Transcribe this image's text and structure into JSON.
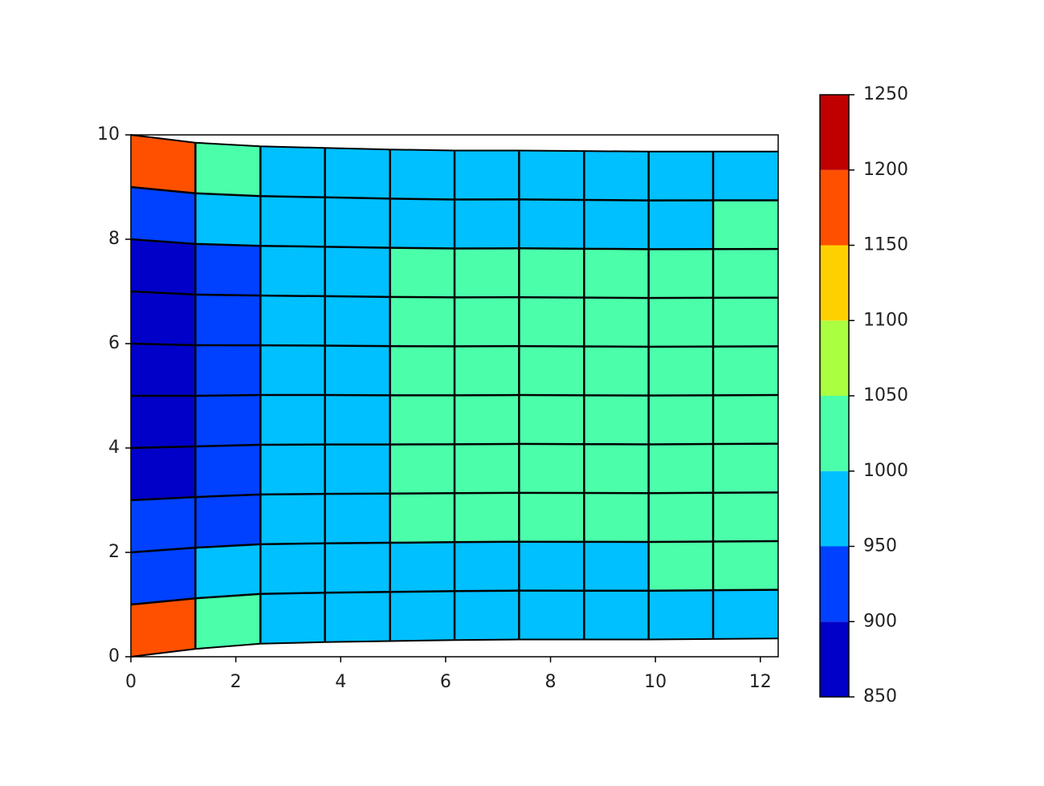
{
  "chart_data": {
    "type": "contour",
    "xlim": [
      0,
      12.34
    ],
    "ylim": [
      0,
      10
    ],
    "xticks": [
      0,
      2,
      4,
      6,
      8,
      10,
      12
    ],
    "yticks": [
      0,
      2,
      4,
      6,
      8,
      10
    ],
    "mesh_x": [
      0,
      1.23,
      2.47,
      3.7,
      4.94,
      6.17,
      7.4,
      8.64,
      9.87,
      11.1,
      12.34
    ],
    "boundary_top": [
      10,
      9.85,
      9.78,
      9.75,
      9.72,
      9.7,
      9.7,
      9.69,
      9.68,
      9.68,
      9.68
    ],
    "boundary_bottom": [
      0,
      0.15,
      0.25,
      0.28,
      0.3,
      0.32,
      0.33,
      0.33,
      0.33,
      0.34,
      0.35
    ],
    "z": [
      [
        1150,
        1040,
        975,
        960,
        975,
        975,
        975,
        975,
        975,
        975
      ],
      [
        925,
        950,
        975,
        975,
        975,
        975,
        975,
        975,
        1000,
        1025
      ],
      [
        900,
        930,
        975,
        975,
        1025,
        1025,
        1025,
        1025,
        1025,
        1025
      ],
      [
        875,
        925,
        975,
        975,
        1025,
        1025,
        1025,
        1025,
        1025,
        1025
      ],
      [
        870,
        920,
        975,
        975,
        1025,
        1025,
        1025,
        1025,
        1025,
        1025
      ],
      [
        870,
        920,
        975,
        975,
        1025,
        1025,
        1025,
        1025,
        1025,
        1025
      ],
      [
        875,
        925,
        975,
        975,
        1025,
        1025,
        1025,
        1025,
        1025,
        1025
      ],
      [
        890,
        930,
        975,
        975,
        1020,
        1025,
        1025,
        1025,
        1025,
        1025
      ],
      [
        930,
        960,
        975,
        975,
        975,
        975,
        975,
        975,
        990,
        1010
      ],
      [
        1150,
        1040,
        980,
        960,
        970,
        975,
        975,
        975,
        975,
        975
      ]
    ],
    "levels": [
      850,
      900,
      950,
      1000,
      1050,
      1100,
      1150,
      1200,
      1250
    ],
    "colors": [
      "#0000c8",
      "#0040ff",
      "#00c0ff",
      "#4bffaa",
      "#aaff40",
      "#ffd000",
      "#ff5000",
      "#c00000"
    ]
  }
}
